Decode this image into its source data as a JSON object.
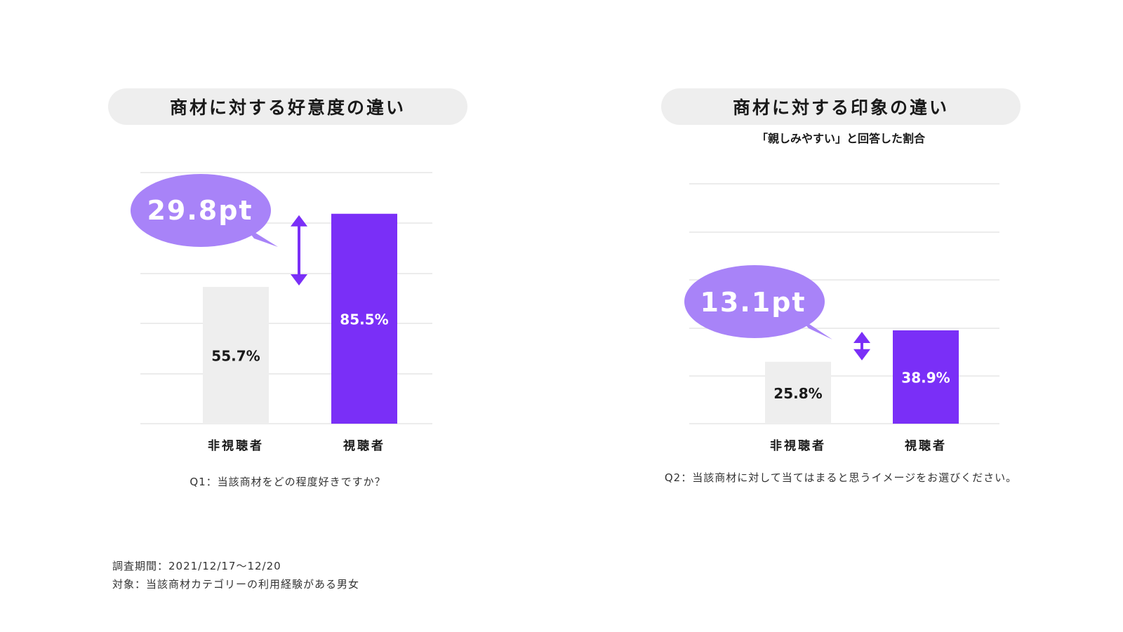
{
  "colors": {
    "accent": "#7a2ff7",
    "bubble": "#a883f8",
    "gray_bar": "#eeeeee",
    "pill": "#eeeeee",
    "grid": "#e6e6e6",
    "text": "#1a1a1a"
  },
  "charts": [
    {
      "title": "商材に対する好意度の違い",
      "subtitle": "",
      "question": "Q1：当該商材をどの程度好きですか？",
      "difference_label": "29.8pt",
      "icon": "double-arrow-icon"
    },
    {
      "title": "商材に対する印象の違い",
      "subtitle": "「親しみやすい」と回答した割合",
      "question": "Q2：当該商材に対して当てはまると思うイメージをお選びください。",
      "difference_label": "13.1pt",
      "icon": "double-arrow-icon"
    }
  ],
  "footnotes": {
    "period": "調査期間：2021/12/17〜12/20",
    "target": "対象：当該商材カテゴリーの利用経験がある男女"
  },
  "chart_data": [
    {
      "type": "bar",
      "title": "商材に対する好意度の違い",
      "categories": [
        "非視聴者",
        "視聴者"
      ],
      "values": [
        55.7,
        85.5
      ],
      "value_labels": [
        "55.7%",
        "85.5%"
      ],
      "bar_colors": [
        "#eeeeee",
        "#7a2ff7"
      ],
      "ylim": [
        0,
        100
      ],
      "grid": true,
      "difference": "29.8pt"
    },
    {
      "type": "bar",
      "title": "商材に対する印象の違い",
      "subtitle": "「親しみやすい」と回答した割合",
      "categories": [
        "非視聴者",
        "視聴者"
      ],
      "values": [
        25.8,
        38.9
      ],
      "value_labels": [
        "25.8%",
        "38.9%"
      ],
      "bar_colors": [
        "#eeeeee",
        "#7a2ff7"
      ],
      "ylim": [
        0,
        100
      ],
      "grid": true,
      "difference": "13.1pt"
    }
  ]
}
